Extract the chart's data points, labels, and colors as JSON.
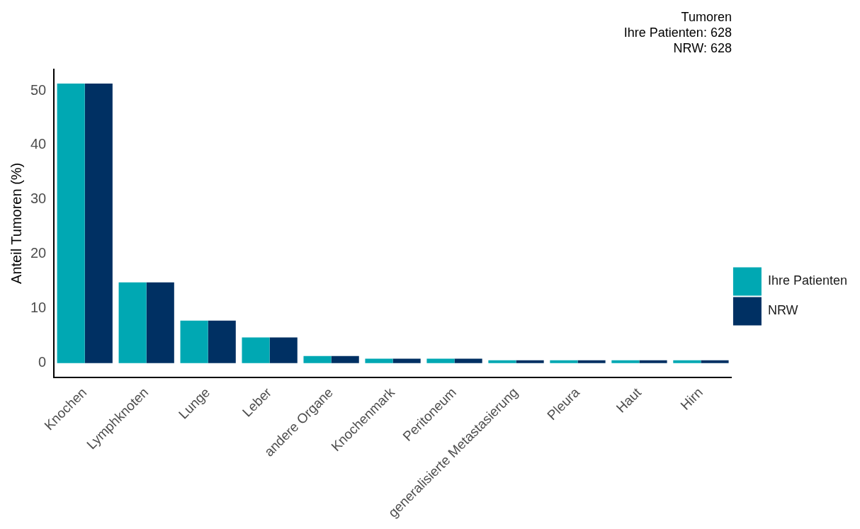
{
  "chart_data": {
    "type": "bar",
    "title": "Tumoren",
    "annotations": [
      "Ihre Patienten: 628",
      "NRW: 628"
    ],
    "ylabel": "Anteil Tumoren (%)",
    "categories": [
      "Knochen",
      "Lymphknoten",
      "Lunge",
      "Leber",
      "andere Organe",
      "Knochenmark",
      "Peritoneum",
      "generalisierte Metastasierung",
      "Pleura",
      "Haut",
      "Hirn"
    ],
    "series": [
      {
        "name": "Ihre Patienten",
        "color": "#00a8b3",
        "values": [
          51.3,
          14.8,
          7.8,
          4.7,
          1.3,
          0.8,
          0.8,
          0.5,
          0.5,
          0.5,
          0.5
        ]
      },
      {
        "name": "NRW",
        "color": "#003063",
        "values": [
          51.3,
          14.8,
          7.8,
          4.7,
          1.3,
          0.8,
          0.8,
          0.5,
          0.5,
          0.5,
          0.5
        ]
      }
    ],
    "ylim": [
      -2.6,
      53.9
    ],
    "yticks": [
      0,
      10,
      20,
      30,
      40,
      50
    ],
    "grid": false,
    "legend": "right"
  }
}
